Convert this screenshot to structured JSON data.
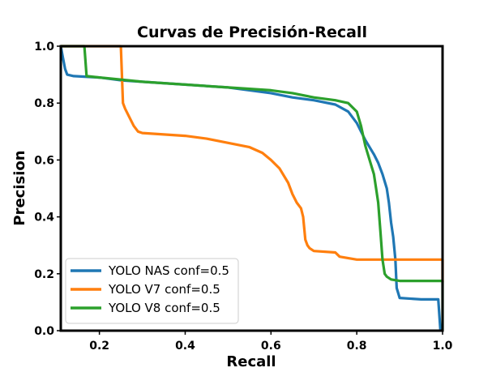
{
  "chart_data": {
    "type": "line",
    "title": "Curvas de Precisión-Recall",
    "xlabel": "Recall",
    "ylabel": "Precision",
    "xlim": [
      0.11,
      1.0
    ],
    "ylim": [
      0.0,
      1.0
    ],
    "xticks": [
      0.2,
      0.4,
      0.6,
      0.8,
      1.0
    ],
    "xtick_labels": [
      "0.2",
      "0.4",
      "0.6",
      "0.8",
      "1.0"
    ],
    "yticks": [
      0.0,
      0.2,
      0.4,
      0.6,
      0.8,
      1.0
    ],
    "ytick_labels": [
      "0.0",
      "0.2",
      "0.4",
      "0.6",
      "0.8",
      "1.0"
    ],
    "grid": false,
    "legend_position": "lower-left",
    "series": [
      {
        "name": "YOLO NAS conf=0.5",
        "color": "#1f77b4",
        "x": [
          0.11,
          0.115,
          0.12,
          0.125,
          0.14,
          0.2,
          0.25,
          0.3,
          0.4,
          0.5,
          0.55,
          0.6,
          0.65,
          0.7,
          0.75,
          0.78,
          0.8,
          0.82,
          0.84,
          0.85,
          0.86,
          0.87,
          0.875,
          0.88,
          0.885,
          0.89,
          0.893,
          0.9,
          0.95,
          0.99,
          0.995
        ],
        "y": [
          1.0,
          0.96,
          0.92,
          0.9,
          0.895,
          0.89,
          0.88,
          0.875,
          0.865,
          0.855,
          0.845,
          0.835,
          0.82,
          0.81,
          0.795,
          0.77,
          0.73,
          0.67,
          0.62,
          0.59,
          0.55,
          0.5,
          0.45,
          0.38,
          0.33,
          0.25,
          0.15,
          0.115,
          0.11,
          0.11,
          0.0
        ]
      },
      {
        "name": "YOLO V7 conf=0.5",
        "color": "#ff7f0e",
        "x": [
          0.11,
          0.25,
          0.255,
          0.26,
          0.27,
          0.28,
          0.29,
          0.3,
          0.4,
          0.45,
          0.5,
          0.55,
          0.58,
          0.6,
          0.62,
          0.64,
          0.65,
          0.66,
          0.67,
          0.675,
          0.68,
          0.685,
          0.69,
          0.7,
          0.75,
          0.76,
          0.8,
          0.9,
          1.0,
          1.0
        ],
        "y": [
          1.0,
          1.0,
          0.8,
          0.78,
          0.75,
          0.72,
          0.7,
          0.695,
          0.685,
          0.675,
          0.66,
          0.645,
          0.625,
          0.6,
          0.57,
          0.52,
          0.48,
          0.45,
          0.43,
          0.4,
          0.32,
          0.3,
          0.29,
          0.28,
          0.275,
          0.26,
          0.25,
          0.25,
          0.25,
          0.17
        ]
      },
      {
        "name": "YOLO V8 conf=0.5",
        "color": "#2ca02c",
        "x": [
          0.11,
          0.165,
          0.17,
          0.2,
          0.3,
          0.4,
          0.5,
          0.6,
          0.65,
          0.7,
          0.75,
          0.78,
          0.8,
          0.81,
          0.82,
          0.83,
          0.84,
          0.845,
          0.85,
          0.855,
          0.86,
          0.865,
          0.87,
          0.88,
          0.9,
          0.95,
          1.0,
          1.0
        ],
        "y": [
          1.0,
          1.0,
          0.895,
          0.89,
          0.875,
          0.865,
          0.855,
          0.845,
          0.835,
          0.82,
          0.81,
          0.8,
          0.77,
          0.72,
          0.65,
          0.6,
          0.55,
          0.5,
          0.45,
          0.35,
          0.25,
          0.2,
          0.19,
          0.18,
          0.175,
          0.175,
          0.175,
          0.0
        ]
      }
    ]
  }
}
